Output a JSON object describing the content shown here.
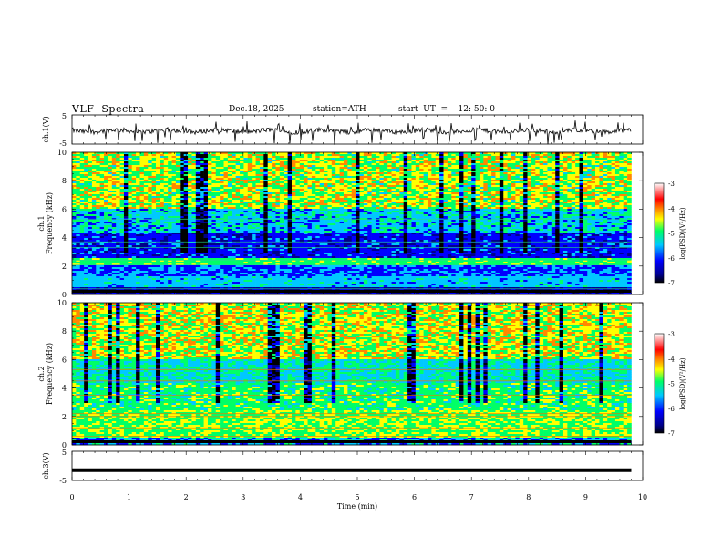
{
  "header": {
    "title": "VLF  Spectra",
    "date": "Dec.18, 2025",
    "station": "station=ATH",
    "start_time": "start  UT  =    12: 50: 0"
  },
  "chart_data": [
    {
      "type": "line",
      "panel": "ch1-waveform",
      "ylabel": "ch.1(V)",
      "yticks": [
        "5",
        "-5"
      ],
      "ylim": [
        -5,
        5
      ],
      "xlim": [
        0,
        10
      ],
      "data_extent_min": 9.8,
      "baseline": -0.5,
      "note_series": "noisy waveform with spikes"
    },
    {
      "type": "heatmap",
      "panel": "ch1-spectrogram",
      "ylabel": "Frequency  (kHz)",
      "channel_label": "ch.1",
      "yticks": [
        "0",
        "2",
        "4",
        "6",
        "8",
        "10"
      ],
      "ylim": [
        0,
        10
      ],
      "xlim": [
        0,
        10
      ],
      "data_extent_min": 9.8,
      "colorbar": {
        "label": "log(PSD)(V²/Hz)",
        "ticks": [
          "-3",
          "-4",
          "-5",
          "-6",
          "-7"
        ],
        "range": [
          -7,
          -3
        ]
      },
      "colors": [
        "#000000",
        "#00008b",
        "#0000ff",
        "#00c8ff",
        "#00ff66",
        "#ffff00",
        "#ff8800",
        "#ff0000",
        "#ffffff"
      ]
    },
    {
      "type": "heatmap",
      "panel": "ch2-spectrogram",
      "ylabel": "Frequency  (kHz)",
      "channel_label": "ch.2",
      "yticks": [
        "0",
        "2",
        "4",
        "6",
        "8",
        "10"
      ],
      "ylim": [
        0,
        10
      ],
      "xlim": [
        0,
        10
      ],
      "data_extent_min": 9.8,
      "colorbar": {
        "label": "log(PSD)(V²/Hz)",
        "ticks": [
          "-3",
          "-4",
          "-5",
          "-6",
          "-7"
        ],
        "range": [
          -7,
          -3
        ]
      }
    },
    {
      "type": "line",
      "panel": "ch3-waveform",
      "ylabel": "ch.3(V)",
      "yticks": [
        "5",
        "-5"
      ],
      "ylim": [
        -5,
        5
      ],
      "xlim": [
        0,
        10
      ],
      "data_extent_min": 9.8,
      "baseline": -1.5
    }
  ],
  "xaxis": {
    "label": "Time  (min)",
    "ticks": [
      "0",
      "1",
      "2",
      "3",
      "4",
      "5",
      "6",
      "7",
      "8",
      "9",
      "10"
    ]
  }
}
